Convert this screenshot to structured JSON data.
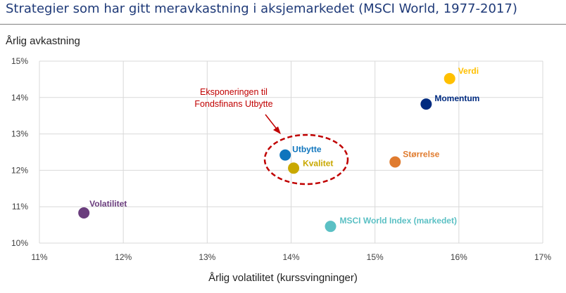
{
  "title": "Strategier som har gitt meravkastning i aksjemarkedet (MSCI World, 1977-2017)",
  "chart_data": {
    "type": "scatter",
    "title": "Strategier som har gitt meravkastning i aksjemarkedet (MSCI World, 1977-2017)",
    "xlabel": "Årlig volatilitet (kurssvingninger)",
    "ylabel": "Årlig avkastning",
    "xlim": [
      11,
      17
    ],
    "ylim": [
      10,
      15
    ],
    "x_ticks": [
      "11%",
      "12%",
      "13%",
      "14%",
      "15%",
      "16%",
      "17%"
    ],
    "y_ticks": [
      "10%",
      "11%",
      "12%",
      "13%",
      "14%",
      "15%"
    ],
    "grid": true,
    "points": [
      {
        "label": "Verdi",
        "x": 15.89,
        "y": 14.52,
        "color": "#ffc000",
        "label_color": "#ffc000"
      },
      {
        "label": "Momentum",
        "x": 15.61,
        "y": 13.82,
        "color": "#002b80",
        "label_color": "#002b80"
      },
      {
        "label": "Utbytte",
        "x": 13.93,
        "y": 12.42,
        "color": "#0f75bd",
        "label_color": "#0f75bd"
      },
      {
        "label": "Kvalitet",
        "x": 14.03,
        "y": 12.06,
        "color": "#c9a800",
        "label_color": "#c9a800"
      },
      {
        "label": "Størrelse",
        "x": 15.24,
        "y": 12.23,
        "color": "#e07b2e",
        "label_color": "#e07b2e"
      },
      {
        "label": "Volatilitet",
        "x": 11.53,
        "y": 10.83,
        "color": "#6a3d7d",
        "label_color": "#6a3d7d"
      },
      {
        "label": "MSCI World Index (markedet)",
        "x": 14.47,
        "y": 10.46,
        "color": "#5bc0c4",
        "label_color": "#5bc0c4"
      }
    ],
    "annotation": {
      "lines": [
        "Eksponeringen til",
        "Fondsfinans Utbytte"
      ],
      "color": "#c00000",
      "target": "Utbytte / Kvalitet"
    }
  }
}
